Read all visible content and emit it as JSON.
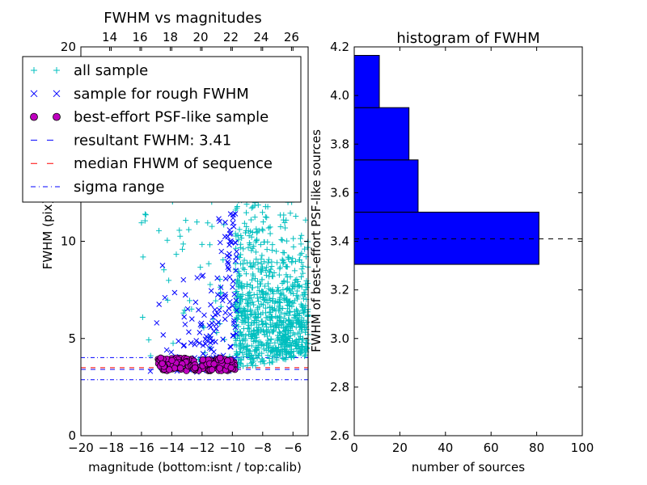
{
  "chart_data": [
    {
      "type": "scatter",
      "title": "FWHM vs magnitudes",
      "xlabel": "magnitude (bottom:isnt / top:calib)",
      "ylabel": "FWHM (pix)",
      "xlim": [
        -20,
        -5
      ],
      "ylim": [
        0,
        20
      ],
      "x_ticks": [
        "−20",
        "−18",
        "−16",
        "−14",
        "−12",
        "−10",
        "−8",
        "−6"
      ],
      "x_tick_values": [
        -20,
        -18,
        -16,
        -14,
        -12,
        -10,
        -8,
        -6
      ],
      "top_ticks": [
        "14",
        "16",
        "18",
        "20",
        "22",
        "24",
        "26"
      ],
      "top_tick_values": [
        14,
        16,
        18,
        20,
        22,
        24,
        26
      ],
      "top_xlim": [
        12.1,
        27.1
      ],
      "y_ticks": [
        "0",
        "5",
        "10",
        "20"
      ],
      "y_tick_values": [
        0,
        5,
        10,
        20
      ],
      "legend": {
        "position": "upper-left",
        "entries": [
          {
            "label": "all sample",
            "marker": "+",
            "color": "#00bfbf"
          },
          {
            "label": "sample for rough FWHM",
            "marker": "x",
            "color": "#0000ff"
          },
          {
            "label": "best-effort PSF-like sample",
            "marker": "o",
            "color": "#bf00bf"
          },
          {
            "label": "resultant FWHM: 3.41",
            "line": "dashed",
            "color": "#0000ff"
          },
          {
            "label": "median FHWM of sequence",
            "line": "dashed",
            "color": "#ff0000"
          },
          {
            "label": "sigma range",
            "line": "dashdot",
            "color": "#0000ff"
          }
        ]
      },
      "lines": {
        "resultant_fwhm": 3.41,
        "median_fwhm": 3.5,
        "sigma_low": 2.88,
        "sigma_high": 4.02
      },
      "points_summary": {
        "all_sample": {
          "x_range": [
            -16,
            -5
          ],
          "y_range": [
            2.2,
            20
          ],
          "dense_x_range": [
            -9.8,
            -5
          ],
          "color": "#00bfbf"
        },
        "rough_sample": {
          "x_range": [
            -15.5,
            -9.7
          ],
          "y_range": [
            1.7,
            11.5
          ],
          "color": "#0000ff"
        },
        "psf_sample": {
          "x_range": [
            -15,
            -9.8
          ],
          "y_range": [
            3.3,
            4.0
          ],
          "color": "#bf00bf"
        }
      }
    },
    {
      "type": "bar",
      "orientation": "horizontal",
      "title": "histogram of FWHM",
      "xlabel": "number of sources",
      "ylabel": "FWHM of best-effort PSF-like sources",
      "xlim": [
        0,
        100
      ],
      "ylim": [
        2.6,
        4.2
      ],
      "x_ticks": [
        "0",
        "20",
        "40",
        "60",
        "80",
        "100"
      ],
      "x_tick_values": [
        0,
        20,
        40,
        60,
        80,
        100
      ],
      "y_ticks": [
        "2.6",
        "2.8",
        "3.0",
        "3.2",
        "3.4",
        "3.6",
        "3.8",
        "4.0",
        "4.2"
      ],
      "y_tick_values": [
        2.6,
        2.8,
        3.0,
        3.2,
        3.4,
        3.6,
        3.8,
        4.0,
        4.2
      ],
      "bins": [
        {
          "low": 3.305,
          "high": 3.52,
          "count": 81
        },
        {
          "low": 3.52,
          "high": 3.735,
          "count": 28
        },
        {
          "low": 3.735,
          "high": 3.95,
          "count": 24
        },
        {
          "low": 3.95,
          "high": 4.165,
          "count": 11
        }
      ],
      "bar_color": "#0000ff",
      "resultant_fwhm": 3.41
    }
  ]
}
